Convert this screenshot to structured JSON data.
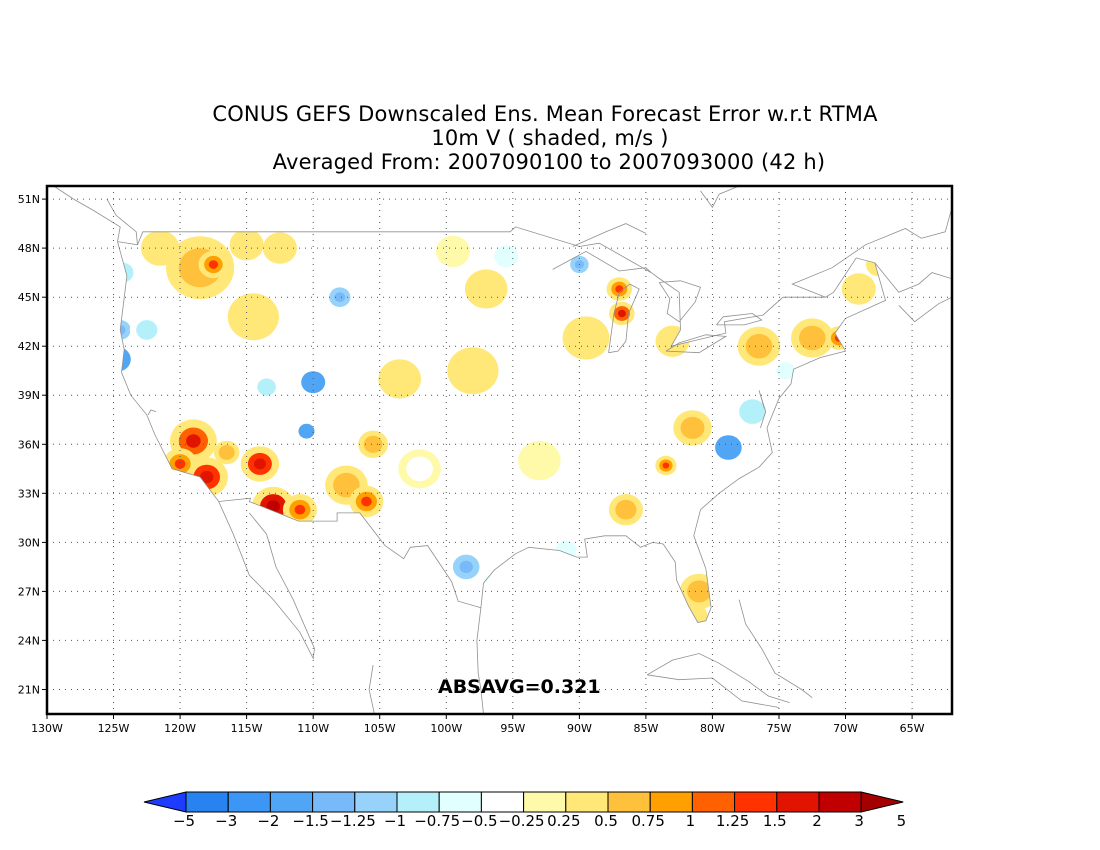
{
  "title": {
    "line1": "CONUS GEFS Downscaled Ens. Mean Forecast Error w.r.t RTMA",
    "line2": "10m V ( shaded, m/s )",
    "line3": "Averaged From: 2007090100 to 2007093000 (42 h)"
  },
  "annotation": "ABSAVG=0.321",
  "map": {
    "lon_range": [
      -130,
      -62
    ],
    "lat_range": [
      19.5,
      51.8
    ],
    "lon_ticks": [
      {
        "lon": -130,
        "label": "130W"
      },
      {
        "lon": -125,
        "label": "125W"
      },
      {
        "lon": -120,
        "label": "120W"
      },
      {
        "lon": -115,
        "label": "115W"
      },
      {
        "lon": -110,
        "label": "110W"
      },
      {
        "lon": -105,
        "label": "105W"
      },
      {
        "lon": -100,
        "label": "100W"
      },
      {
        "lon": -95,
        "label": "95W"
      },
      {
        "lon": -90,
        "label": "90W"
      },
      {
        "lon": -85,
        "label": "85W"
      },
      {
        "lon": -80,
        "label": "80W"
      },
      {
        "lon": -75,
        "label": "75W"
      },
      {
        "lon": -70,
        "label": "70W"
      },
      {
        "lon": -65,
        "label": "65W"
      }
    ],
    "lat_ticks": [
      {
        "lat": 21,
        "label": "21N"
      },
      {
        "lat": 24,
        "label": "24N"
      },
      {
        "lat": 27,
        "label": "27N"
      },
      {
        "lat": 30,
        "label": "30N"
      },
      {
        "lat": 33,
        "label": "33N"
      },
      {
        "lat": 36,
        "label": "36N"
      },
      {
        "lat": 39,
        "label": "39N"
      },
      {
        "lat": 42,
        "label": "42N"
      },
      {
        "lat": 45,
        "label": "45N"
      },
      {
        "lat": 48,
        "label": "48N"
      },
      {
        "lat": 51,
        "label": "51N"
      }
    ],
    "grid": true,
    "coastline_color": "#909090",
    "blobs": [
      {
        "lon": -118.5,
        "lat": 46.8,
        "r": 1.6,
        "v": 0.75
      },
      {
        "lon": -117.5,
        "lat": 47.0,
        "r": 0.7,
        "v": 1.0
      },
      {
        "lon": -121.5,
        "lat": 48.0,
        "r": 0.9,
        "v": 0.5
      },
      {
        "lon": -115.0,
        "lat": 48.2,
        "r": 0.8,
        "v": 0.5
      },
      {
        "lon": -112.5,
        "lat": 48.0,
        "r": 0.8,
        "v": 0.5
      },
      {
        "lon": -124.7,
        "lat": 41.2,
        "r": 1.0,
        "v": -1.5
      },
      {
        "lon": -124.5,
        "lat": 43.0,
        "r": 0.8,
        "v": -1.0
      },
      {
        "lon": -124.3,
        "lat": 46.5,
        "r": 0.8,
        "v": -0.75
      },
      {
        "lon": -122.5,
        "lat": 43.0,
        "r": 0.8,
        "v": -0.75
      },
      {
        "lon": -114.5,
        "lat": 43.8,
        "r": 1.2,
        "v": 0.5
      },
      {
        "lon": -108.0,
        "lat": 45.0,
        "r": 0.8,
        "v": -1.0
      },
      {
        "lon": -110.0,
        "lat": 39.8,
        "r": 0.9,
        "v": -1.5
      },
      {
        "lon": -113.5,
        "lat": 39.5,
        "r": 0.7,
        "v": -0.75
      },
      {
        "lon": -119.0,
        "lat": 36.2,
        "r": 1.1,
        "v": 1.25
      },
      {
        "lon": -118.0,
        "lat": 34.0,
        "r": 1.0,
        "v": 1.5
      },
      {
        "lon": -120.0,
        "lat": 34.8,
        "r": 0.8,
        "v": 1.0
      },
      {
        "lon": -116.5,
        "lat": 35.5,
        "r": 0.6,
        "v": 0.75
      },
      {
        "lon": -114.0,
        "lat": 34.8,
        "r": 0.9,
        "v": 1.5
      },
      {
        "lon": -113.0,
        "lat": 32.2,
        "r": 1.0,
        "v": 2.0
      },
      {
        "lon": -111.0,
        "lat": 32.0,
        "r": 0.8,
        "v": 1.0
      },
      {
        "lon": -110.5,
        "lat": 36.8,
        "r": 0.6,
        "v": -1.5
      },
      {
        "lon": -107.5,
        "lat": 33.5,
        "r": 1.0,
        "v": 0.75
      },
      {
        "lon": -106.0,
        "lat": 32.5,
        "r": 0.8,
        "v": 1.0
      },
      {
        "lon": -105.5,
        "lat": 36.0,
        "r": 0.7,
        "v": 0.75
      },
      {
        "lon": -103.5,
        "lat": 40.0,
        "r": 1.0,
        "v": 0.5
      },
      {
        "lon": -98.0,
        "lat": 40.5,
        "r": 1.2,
        "v": 0.5
      },
      {
        "lon": -97.0,
        "lat": 45.5,
        "r": 1.0,
        "v": 0.5
      },
      {
        "lon": -99.5,
        "lat": 47.8,
        "r": 0.8,
        "v": 0.25
      },
      {
        "lon": -95.5,
        "lat": 47.5,
        "r": 0.9,
        "v": -0.5
      },
      {
        "lon": -90.0,
        "lat": 47.0,
        "r": 0.7,
        "v": -1.0
      },
      {
        "lon": -86.8,
        "lat": 44.0,
        "r": 0.6,
        "v": 1.25
      },
      {
        "lon": -87.0,
        "lat": 45.5,
        "r": 0.6,
        "v": 1.0
      },
      {
        "lon": -89.5,
        "lat": 42.5,
        "r": 1.1,
        "v": 0.5
      },
      {
        "lon": -83.0,
        "lat": 42.3,
        "r": 0.8,
        "v": 0.5
      },
      {
        "lon": -81.5,
        "lat": 37.0,
        "r": 0.9,
        "v": 0.75
      },
      {
        "lon": -83.5,
        "lat": 34.7,
        "r": 0.5,
        "v": 1.0
      },
      {
        "lon": -78.8,
        "lat": 35.8,
        "r": 1.0,
        "v": -1.5
      },
      {
        "lon": -77.0,
        "lat": 38.0,
        "r": 1.0,
        "v": -0.75
      },
      {
        "lon": -74.5,
        "lat": 40.5,
        "r": 0.7,
        "v": -0.5
      },
      {
        "lon": -76.5,
        "lat": 42.0,
        "r": 1.0,
        "v": 0.75
      },
      {
        "lon": -72.5,
        "lat": 42.5,
        "r": 1.0,
        "v": 0.75
      },
      {
        "lon": -70.5,
        "lat": 42.5,
        "r": 0.6,
        "v": 1.0
      },
      {
        "lon": -69.0,
        "lat": 45.5,
        "r": 0.8,
        "v": 0.5
      },
      {
        "lon": -67.5,
        "lat": 47.0,
        "r": 0.6,
        "v": 0.5
      },
      {
        "lon": -81.0,
        "lat": 27.0,
        "r": 0.9,
        "v": 0.75
      },
      {
        "lon": -81.5,
        "lat": 25.5,
        "r": 0.7,
        "v": 0.5
      },
      {
        "lon": -98.5,
        "lat": 28.5,
        "r": 1.0,
        "v": -1.0
      },
      {
        "lon": -96.5,
        "lat": 27.5,
        "r": 0.7,
        "v": -0.5
      },
      {
        "lon": -91.0,
        "lat": 29.5,
        "r": 0.8,
        "v": -0.5
      },
      {
        "lon": -86.5,
        "lat": 32.0,
        "r": 0.8,
        "v": 0.75
      },
      {
        "lon": -93.0,
        "lat": 35.0,
        "r": 1.0,
        "v": 0.25
      },
      {
        "lon": -102.0,
        "lat": 34.5,
        "r": 1.0,
        "v": -0.25
      }
    ]
  },
  "colorbar": {
    "colors": [
      "#1e3cff",
      "#2882f0",
      "#3c96f5",
      "#50a5f5",
      "#78b9fa",
      "#96d2fa",
      "#b4f0fa",
      "#e1ffff",
      "#ffffff",
      "#fffaaa",
      "#ffe878",
      "#ffc03c",
      "#ffa000",
      "#ff6000",
      "#ff3200",
      "#e11400",
      "#c00000",
      "#a50000"
    ],
    "labels": [
      "-5",
      "-3",
      "-2",
      "-1.5",
      "-1.25",
      "-1",
      "-0.75",
      "-0.5",
      "-0.25",
      "0.25",
      "0.5",
      "0.75",
      "1",
      "1.25",
      "1.5",
      "2",
      "3",
      "5"
    ]
  }
}
